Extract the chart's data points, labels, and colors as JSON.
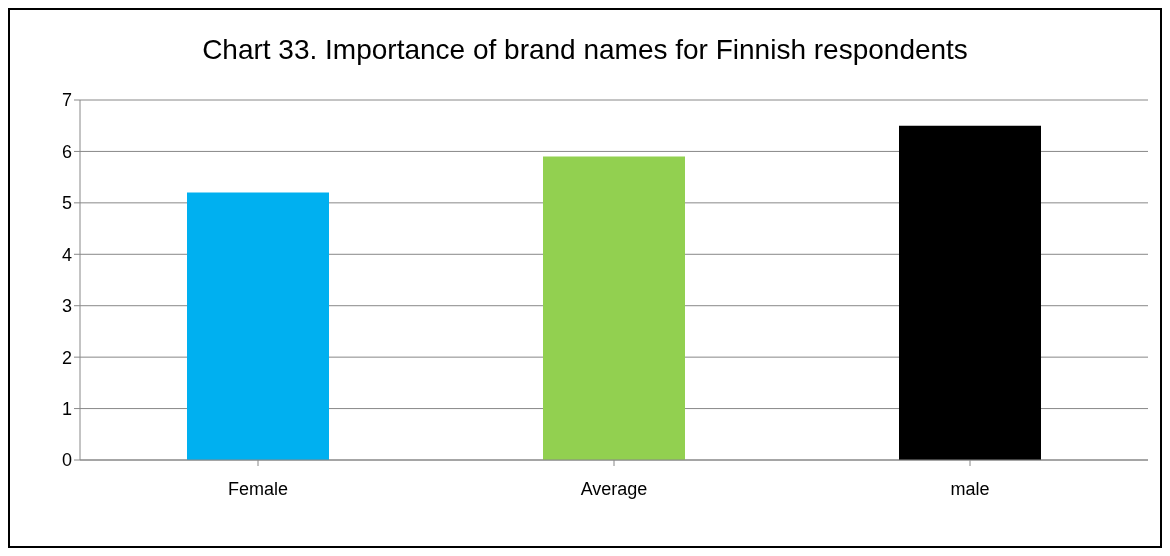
{
  "chart_data": {
    "type": "bar",
    "title": "Chart 33. Importance of brand names for Finnish respondents",
    "categories": [
      "Female",
      "Average",
      "male"
    ],
    "values": [
      5.2,
      5.9,
      6.5
    ],
    "colors": [
      "#00b0f0",
      "#92d050",
      "#000000"
    ],
    "ylim": [
      0,
      7
    ],
    "yticks": [
      0,
      1,
      2,
      3,
      4,
      5,
      6,
      7
    ],
    "grid": "y",
    "legend": false
  }
}
